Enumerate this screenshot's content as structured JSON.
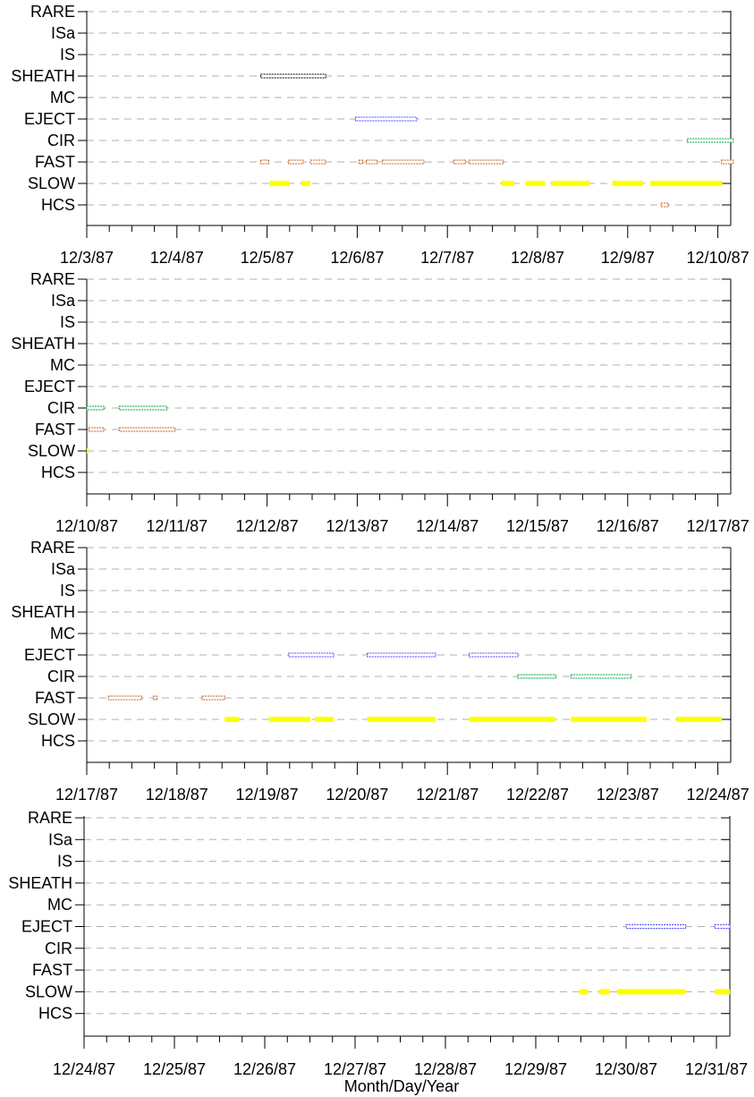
{
  "colors": {
    "RARE": "#000000",
    "SHEATH": "#000000",
    "EJECT": "#4a4aff",
    "CIR": "#00a040",
    "FAST": "#c06020",
    "SLOW": "#ffff00",
    "HCS": "#c06020",
    "axis": "#000000",
    "grid": "#b0b0b0"
  },
  "xlabel": "Month/Day/Year",
  "chart_data": [
    {
      "type": "timeline",
      "categories": [
        "RARE",
        "ISa",
        "IS",
        "SHEATH",
        "MC",
        "EJECT",
        "CIR",
        "FAST",
        "SLOW",
        "HCS"
      ],
      "xlim": [
        "12/3/87",
        "12/10/87 03:00"
      ],
      "xticklabels": [
        "12/3/87",
        "12/4/87",
        "12/5/87",
        "12/6/87",
        "12/7/87",
        "12/8/87",
        "12/9/87",
        "12/10/87"
      ],
      "grid": true,
      "series": [
        {
          "name": "SHEATH",
          "intervals": [
            [
              1.93,
              2.65
            ]
          ]
        },
        {
          "name": "EJECT",
          "intervals": [
            [
              2.98,
              3.66
            ]
          ]
        },
        {
          "name": "CIR",
          "intervals": [
            [
              6.66,
              7.17
            ]
          ]
        },
        {
          "name": "FAST",
          "intervals": [
            [
              1.93,
              2.02
            ],
            [
              2.24,
              2.4
            ],
            [
              2.48,
              2.65
            ],
            [
              3.02,
              3.06
            ],
            [
              3.1,
              3.22
            ],
            [
              3.28,
              3.74
            ],
            [
              4.07,
              4.2
            ],
            [
              4.24,
              4.62
            ],
            [
              7.04,
              7.17
            ]
          ]
        },
        {
          "name": "SLOW",
          "intervals": [
            [
              2.03,
              2.25
            ],
            [
              2.38,
              2.48
            ],
            [
              4.6,
              4.74
            ],
            [
              4.87,
              5.08
            ],
            [
              5.15,
              5.58
            ],
            [
              5.83,
              6.17
            ],
            [
              6.25,
              7.05
            ]
          ]
        },
        {
          "name": "HCS",
          "intervals": [
            [
              6.37,
              6.45
            ]
          ]
        }
      ]
    },
    {
      "type": "timeline",
      "categories": [
        "RARE",
        "ISa",
        "IS",
        "SHEATH",
        "MC",
        "EJECT",
        "CIR",
        "FAST",
        "SLOW",
        "HCS"
      ],
      "xlim": [
        "12/10/87",
        "12/17/87 03:00"
      ],
      "xticklabels": [
        "12/10/87",
        "12/11/87",
        "12/12/87",
        "12/13/87",
        "12/14/87",
        "12/15/87",
        "12/16/87",
        "12/17/87"
      ],
      "grid": true,
      "series": [
        {
          "name": "CIR",
          "intervals": [
            [
              0.0,
              0.19
            ],
            [
              0.36,
              0.89
            ]
          ]
        },
        {
          "name": "FAST",
          "intervals": [
            [
              0.02,
              0.19
            ],
            [
              0.36,
              0.98
            ]
          ]
        },
        {
          "name": "SLOW",
          "intervals": [
            [
              0.0,
              0.02
            ]
          ]
        }
      ]
    },
    {
      "type": "timeline",
      "categories": [
        "RARE",
        "ISa",
        "IS",
        "SHEATH",
        "MC",
        "EJECT",
        "CIR",
        "FAST",
        "SLOW",
        "HCS"
      ],
      "xlim": [
        "12/17/87",
        "12/24/87 03:00"
      ],
      "xticklabels": [
        "12/17/87",
        "12/18/87",
        "12/19/87",
        "12/20/87",
        "12/21/87",
        "12/22/87",
        "12/23/87",
        "12/24/87"
      ],
      "grid": true,
      "series": [
        {
          "name": "EJECT",
          "intervals": [
            [
              2.24,
              2.74
            ],
            [
              3.11,
              3.87
            ],
            [
              4.24,
              4.78
            ]
          ]
        },
        {
          "name": "CIR",
          "intervals": [
            [
              4.78,
              5.2
            ],
            [
              5.37,
              6.04
            ]
          ]
        },
        {
          "name": "FAST",
          "intervals": [
            [
              0.24,
              0.61
            ],
            [
              0.74,
              0.78
            ],
            [
              1.28,
              1.53
            ]
          ]
        },
        {
          "name": "SLOW",
          "intervals": [
            [
              1.53,
              1.69
            ],
            [
              2.02,
              2.48
            ],
            [
              2.53,
              2.74
            ],
            [
              3.11,
              3.87
            ],
            [
              4.24,
              5.2
            ],
            [
              5.37,
              6.21
            ],
            [
              6.54,
              7.04
            ]
          ]
        }
      ]
    },
    {
      "type": "timeline",
      "categories": [
        "RARE",
        "ISa",
        "IS",
        "SHEATH",
        "MC",
        "EJECT",
        "CIR",
        "FAST",
        "SLOW",
        "HCS"
      ],
      "xlim": [
        "12/24/87",
        "12/31/87 03:00"
      ],
      "xticklabels": [
        "12/24/87",
        "12/25/87",
        "12/26/87",
        "12/27/87",
        "12/28/87",
        "12/29/87",
        "12/30/87",
        "12/31/87"
      ],
      "grid": true,
      "series": [
        {
          "name": "EJECT",
          "intervals": [
            [
              6.0,
              6.66
            ],
            [
              6.98,
              7.15
            ]
          ]
        },
        {
          "name": "SLOW",
          "intervals": [
            [
              5.48,
              5.58
            ],
            [
              5.7,
              5.82
            ],
            [
              5.9,
              6.66
            ],
            [
              6.98,
              7.15
            ]
          ]
        }
      ]
    }
  ]
}
